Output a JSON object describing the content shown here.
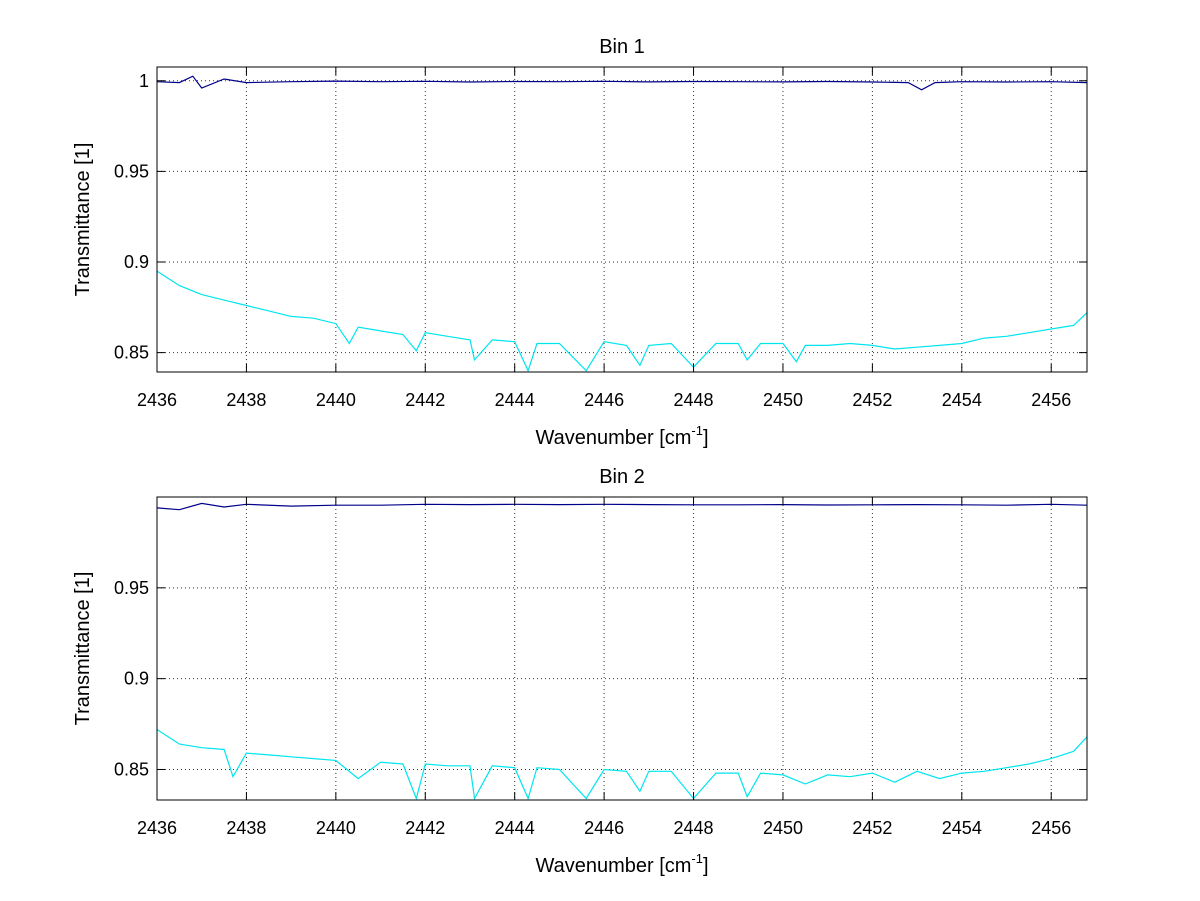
{
  "chart_data": [
    {
      "type": "line",
      "title": "Bin 1",
      "xlabel": "Wavenumber [cm",
      "xlabel_sup": "-1",
      "xlabel_end": "]",
      "ylabel": "Transmittance [1]",
      "xlim": [
        2436,
        2456.8
      ],
      "ylim": [
        0.8393,
        1.0076
      ],
      "xticks": [
        "2436",
        "2438",
        "2440",
        "2442",
        "2444",
        "2446",
        "2448",
        "2450",
        "2452",
        "2454",
        "2456"
      ],
      "yticks": [
        "0.85",
        "0.9",
        "0.95",
        "1"
      ],
      "grid": true,
      "series": [
        {
          "color": "#00008b",
          "x": [
            2436.0,
            2436.5,
            2436.8,
            2437.0,
            2437.5,
            2438.0,
            2439.0,
            2440.0,
            2441.0,
            2442.0,
            2443.0,
            2444.0,
            2445.0,
            2446.0,
            2447.0,
            2448.0,
            2449.0,
            2450.0,
            2451.0,
            2452.0,
            2452.8,
            2453.1,
            2453.4,
            2454.0,
            2455.0,
            2456.0,
            2456.8
          ],
          "y": [
            0.9995,
            0.999,
            1.0025,
            0.996,
            1.001,
            0.999,
            0.9995,
            0.9998,
            0.9995,
            0.9997,
            0.9993,
            0.9996,
            0.9995,
            0.9997,
            0.9994,
            0.9996,
            0.9995,
            0.9994,
            0.9996,
            0.9993,
            0.999,
            0.995,
            0.999,
            0.9995,
            0.9993,
            0.9995,
            0.999
          ]
        },
        {
          "color": "#00e5ee",
          "x": [
            2436.0,
            2436.5,
            2437.0,
            2437.5,
            2438.0,
            2438.5,
            2439.0,
            2439.5,
            2440.0,
            2440.3,
            2440.5,
            2441.0,
            2441.5,
            2441.8,
            2442.0,
            2442.5,
            2443.0,
            2443.1,
            2443.5,
            2444.0,
            2444.3,
            2444.5,
            2445.0,
            2445.6,
            2446.0,
            2446.5,
            2446.8,
            2447.0,
            2447.5,
            2448.0,
            2448.5,
            2449.0,
            2449.2,
            2449.5,
            2450.0,
            2450.3,
            2450.5,
            2451.0,
            2451.5,
            2452.0,
            2452.5,
            2453.0,
            2453.5,
            2454.0,
            2454.5,
            2455.0,
            2455.5,
            2456.0,
            2456.5,
            2456.8
          ],
          "y": [
            0.895,
            0.887,
            0.882,
            0.879,
            0.876,
            0.873,
            0.87,
            0.869,
            0.866,
            0.855,
            0.864,
            0.862,
            0.86,
            0.851,
            0.861,
            0.859,
            0.857,
            0.846,
            0.857,
            0.856,
            0.84,
            0.855,
            0.855,
            0.84,
            0.856,
            0.854,
            0.843,
            0.854,
            0.855,
            0.842,
            0.855,
            0.855,
            0.846,
            0.855,
            0.855,
            0.845,
            0.854,
            0.854,
            0.855,
            0.854,
            0.852,
            0.853,
            0.854,
            0.855,
            0.858,
            0.859,
            0.861,
            0.863,
            0.865,
            0.872
          ]
        }
      ]
    },
    {
      "type": "line",
      "title": "Bin 2",
      "xlabel": "Wavenumber [cm",
      "xlabel_sup": "-1",
      "xlabel_end": "]",
      "ylabel": "Transmittance [1]",
      "xlim": [
        2436,
        2456.8
      ],
      "ylim": [
        0.8332,
        1.0
      ],
      "xticks": [
        "2436",
        "2438",
        "2440",
        "2442",
        "2444",
        "2446",
        "2448",
        "2450",
        "2452",
        "2454",
        "2456"
      ],
      "yticks": [
        "0.85",
        "0.9",
        "0.95"
      ],
      "grid": true,
      "series": [
        {
          "color": "#00008b",
          "x": [
            2436.0,
            2436.5,
            2437.0,
            2437.5,
            2438.0,
            2439.0,
            2440.0,
            2441.0,
            2442.0,
            2443.0,
            2444.0,
            2445.0,
            2446.0,
            2447.0,
            2448.0,
            2449.0,
            2450.0,
            2451.0,
            2452.0,
            2453.0,
            2454.0,
            2455.0,
            2456.0,
            2456.8
          ],
          "y": [
            0.994,
            0.993,
            0.9965,
            0.9945,
            0.996,
            0.995,
            0.9955,
            0.9955,
            0.996,
            0.9958,
            0.996,
            0.9958,
            0.996,
            0.9958,
            0.9957,
            0.9957,
            0.9958,
            0.9956,
            0.9957,
            0.9958,
            0.9957,
            0.9955,
            0.996,
            0.9955
          ]
        },
        {
          "color": "#00e5ee",
          "x": [
            2436.0,
            2436.5,
            2437.0,
            2437.5,
            2437.7,
            2438.0,
            2438.5,
            2439.0,
            2439.5,
            2440.0,
            2440.5,
            2441.0,
            2441.5,
            2441.8,
            2442.0,
            2442.5,
            2443.0,
            2443.1,
            2443.5,
            2444.0,
            2444.3,
            2444.5,
            2445.0,
            2445.6,
            2446.0,
            2446.5,
            2446.8,
            2447.0,
            2447.5,
            2448.0,
            2448.5,
            2449.0,
            2449.2,
            2449.5,
            2450.0,
            2450.5,
            2451.0,
            2451.5,
            2452.0,
            2452.5,
            2453.0,
            2453.5,
            2454.0,
            2454.5,
            2455.0,
            2455.5,
            2456.0,
            2456.5,
            2456.8
          ],
          "y": [
            0.872,
            0.864,
            0.862,
            0.861,
            0.846,
            0.859,
            0.858,
            0.857,
            0.856,
            0.855,
            0.845,
            0.854,
            0.853,
            0.834,
            0.853,
            0.852,
            0.852,
            0.834,
            0.852,
            0.851,
            0.834,
            0.851,
            0.85,
            0.834,
            0.85,
            0.849,
            0.838,
            0.849,
            0.849,
            0.834,
            0.848,
            0.848,
            0.835,
            0.848,
            0.847,
            0.842,
            0.847,
            0.846,
            0.848,
            0.843,
            0.849,
            0.845,
            0.848,
            0.849,
            0.851,
            0.853,
            0.856,
            0.86,
            0.868
          ]
        }
      ]
    }
  ]
}
